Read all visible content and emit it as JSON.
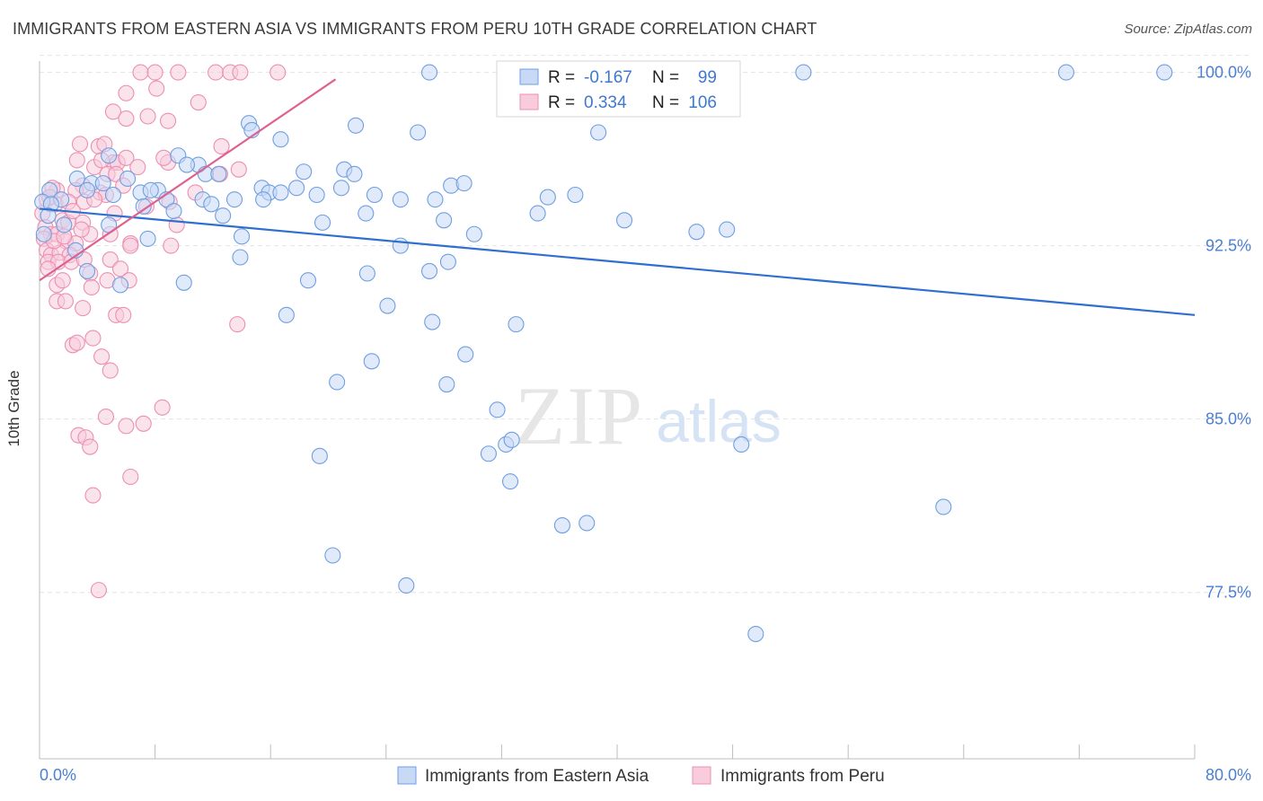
{
  "header": {
    "title": "IMMIGRANTS FROM EASTERN ASIA VS IMMIGRANTS FROM PERU 10TH GRADE CORRELATION CHART",
    "source": "Source: ZipAtlas.com"
  },
  "watermark": {
    "zip": "ZIP",
    "atlas": "atlas"
  },
  "stats": [
    {
      "r_label": "R =",
      "r_value": "-0.167",
      "n_label": "N =",
      "n_value": "99"
    },
    {
      "r_label": "R =",
      "r_value": "0.334",
      "n_label": "N =",
      "n_value": "106"
    }
  ],
  "colors": {
    "blue": "#6f9fe0",
    "blue_fill": "#c7d9f5",
    "blue_line": "#2f6fd0",
    "pink": "#ec8fb0",
    "pink_fill": "#f8ccdc",
    "pink_line": "#e06090",
    "axis_text": "#4a7fd4"
  },
  "chart_data": {
    "type": "scatter",
    "title": "IMMIGRANTS FROM EASTERN ASIA VS IMMIGRANTS FROM PERU 10TH GRADE CORRELATION CHART",
    "ylabel": "10th Grade",
    "xlim": [
      0,
      80
    ],
    "ylim": [
      70.3,
      100.8
    ],
    "x_tick_labels": [
      "0.0%",
      "80.0%"
    ],
    "y_ticks": [
      77.5,
      85.0,
      92.5,
      100.0
    ],
    "y_tick_labels": [
      "77.5%",
      "85.0%",
      "92.5%",
      "100.0%"
    ],
    "legend": [
      "Immigrants from Eastern Asia",
      "Immigrants from Peru"
    ],
    "series": [
      {
        "name": "Immigrants from Eastern Asia",
        "trend": {
          "x": [
            0,
            80
          ],
          "y": [
            94.1,
            89.5
          ]
        },
        "points": [
          [
            27.0,
            100.0
          ],
          [
            37.7,
            100.0
          ],
          [
            52.9,
            100.0
          ],
          [
            71.1,
            100.0
          ],
          [
            77.9,
            100.0
          ],
          [
            14.5,
            97.8
          ],
          [
            14.7,
            97.5
          ],
          [
            21.9,
            97.7
          ],
          [
            26.2,
            97.4
          ],
          [
            38.7,
            97.4
          ],
          [
            16.7,
            97.1
          ],
          [
            4.8,
            96.4
          ],
          [
            9.6,
            96.4
          ],
          [
            11.0,
            96.0
          ],
          [
            10.2,
            96.0
          ],
          [
            11.5,
            95.6
          ],
          [
            12.4,
            95.6
          ],
          [
            18.3,
            95.7
          ],
          [
            21.1,
            95.8
          ],
          [
            21.8,
            95.6
          ],
          [
            2.6,
            95.4
          ],
          [
            3.6,
            95.2
          ],
          [
            4.4,
            95.2
          ],
          [
            6.1,
            95.4
          ],
          [
            0.7,
            94.9
          ],
          [
            1.5,
            94.5
          ],
          [
            3.3,
            94.9
          ],
          [
            8.2,
            94.9
          ],
          [
            7.0,
            94.8
          ],
          [
            15.4,
            95.0
          ],
          [
            15.9,
            94.8
          ],
          [
            16.7,
            94.8
          ],
          [
            17.8,
            95.0
          ],
          [
            19.2,
            94.7
          ],
          [
            20.9,
            95.0
          ],
          [
            23.2,
            94.7
          ],
          [
            28.5,
            95.1
          ],
          [
            29.4,
            95.2
          ],
          [
            37.1,
            94.7
          ],
          [
            0.2,
            94.4
          ],
          [
            0.8,
            94.3
          ],
          [
            5.1,
            94.7
          ],
          [
            7.7,
            94.9
          ],
          [
            8.8,
            94.5
          ],
          [
            11.3,
            94.5
          ],
          [
            11.9,
            94.3
          ],
          [
            13.5,
            94.5
          ],
          [
            15.5,
            94.5
          ],
          [
            25.0,
            94.5
          ],
          [
            27.4,
            94.5
          ],
          [
            0.6,
            93.8
          ],
          [
            1.7,
            93.4
          ],
          [
            7.2,
            94.2
          ],
          [
            9.3,
            94.0
          ],
          [
            12.7,
            93.8
          ],
          [
            19.6,
            93.5
          ],
          [
            22.6,
            93.9
          ],
          [
            28.0,
            93.6
          ],
          [
            34.5,
            93.9
          ],
          [
            45.5,
            93.1
          ],
          [
            47.6,
            93.2
          ],
          [
            0.3,
            93.0
          ],
          [
            4.8,
            93.4
          ],
          [
            7.5,
            92.8
          ],
          [
            14.0,
            92.9
          ],
          [
            25.0,
            92.5
          ],
          [
            28.3,
            91.8
          ],
          [
            13.9,
            92.0
          ],
          [
            3.3,
            91.4
          ],
          [
            5.6,
            90.8
          ],
          [
            10.0,
            90.9
          ],
          [
            18.6,
            91.0
          ],
          [
            22.7,
            91.3
          ],
          [
            27.0,
            91.4
          ],
          [
            24.1,
            89.9
          ],
          [
            17.1,
            89.5
          ],
          [
            33.0,
            89.1
          ],
          [
            29.5,
            87.8
          ],
          [
            23.0,
            87.5
          ],
          [
            20.6,
            86.6
          ],
          [
            28.2,
            86.5
          ],
          [
            31.7,
            85.4
          ],
          [
            31.1,
            83.5
          ],
          [
            32.3,
            83.9
          ],
          [
            32.7,
            84.1
          ],
          [
            48.6,
            83.9
          ],
          [
            19.4,
            83.4
          ],
          [
            32.6,
            82.3
          ],
          [
            62.6,
            81.2
          ],
          [
            36.2,
            80.4
          ],
          [
            37.9,
            80.5
          ],
          [
            20.3,
            79.1
          ],
          [
            25.4,
            77.8
          ],
          [
            49.6,
            75.7
          ],
          [
            27.2,
            89.2
          ],
          [
            2.5,
            92.3
          ],
          [
            35.2,
            94.6
          ],
          [
            30.1,
            93.0
          ],
          [
            40.5,
            93.6
          ]
        ]
      },
      {
        "name": "Immigrants from Peru",
        "trend": {
          "x": [
            0,
            20.5
          ],
          "y": [
            91.0,
            99.7
          ]
        },
        "points": [
          [
            7.0,
            100.0
          ],
          [
            8.0,
            100.0
          ],
          [
            9.6,
            100.0
          ],
          [
            12.2,
            100.0
          ],
          [
            13.2,
            100.0
          ],
          [
            13.9,
            100.0
          ],
          [
            16.5,
            100.0
          ],
          [
            8.1,
            99.3
          ],
          [
            6.0,
            99.1
          ],
          [
            11.0,
            98.7
          ],
          [
            5.1,
            98.3
          ],
          [
            6.0,
            98.0
          ],
          [
            7.5,
            98.1
          ],
          [
            8.9,
            97.9
          ],
          [
            2.8,
            96.9
          ],
          [
            4.1,
            96.8
          ],
          [
            4.5,
            96.9
          ],
          [
            12.6,
            96.8
          ],
          [
            2.6,
            96.2
          ],
          [
            5.1,
            96.1
          ],
          [
            5.4,
            96.1
          ],
          [
            8.9,
            96.1
          ],
          [
            6.0,
            96.3
          ],
          [
            3.8,
            95.9
          ],
          [
            4.7,
            95.6
          ],
          [
            5.3,
            95.6
          ],
          [
            3.0,
            95.1
          ],
          [
            1.2,
            94.9
          ],
          [
            2.5,
            94.9
          ],
          [
            4.2,
            94.8
          ],
          [
            4.6,
            94.7
          ],
          [
            0.5,
            94.5
          ],
          [
            1.1,
            94.3
          ],
          [
            2.0,
            94.4
          ],
          [
            3.1,
            94.4
          ],
          [
            9.0,
            94.4
          ],
          [
            0.2,
            93.9
          ],
          [
            1.6,
            93.6
          ],
          [
            2.0,
            93.5
          ],
          [
            3.0,
            93.5
          ],
          [
            0.4,
            93.3
          ],
          [
            0.8,
            93.0
          ],
          [
            1.2,
            93.0
          ],
          [
            4.9,
            93.0
          ],
          [
            0.3,
            92.8
          ],
          [
            1.8,
            92.7
          ],
          [
            2.5,
            92.6
          ],
          [
            6.3,
            92.6
          ],
          [
            0.5,
            92.3
          ],
          [
            0.8,
            92.1
          ],
          [
            1.4,
            92.2
          ],
          [
            2.1,
            92.1
          ],
          [
            0.6,
            91.8
          ],
          [
            1.3,
            91.8
          ],
          [
            2.2,
            91.8
          ],
          [
            3.1,
            91.9
          ],
          [
            4.9,
            91.9
          ],
          [
            5.6,
            91.5
          ],
          [
            3.5,
            91.3
          ],
          [
            6.3,
            92.5
          ],
          [
            4.7,
            91.0
          ],
          [
            6.2,
            91.0
          ],
          [
            1.2,
            90.8
          ],
          [
            3.6,
            90.7
          ],
          [
            1.2,
            90.1
          ],
          [
            1.8,
            90.1
          ],
          [
            3.0,
            89.8
          ],
          [
            5.3,
            89.5
          ],
          [
            5.8,
            89.5
          ],
          [
            13.7,
            89.1
          ],
          [
            3.7,
            88.5
          ],
          [
            2.3,
            88.2
          ],
          [
            2.6,
            88.3
          ],
          [
            4.3,
            87.7
          ],
          [
            4.9,
            87.1
          ],
          [
            8.5,
            85.5
          ],
          [
            4.6,
            85.1
          ],
          [
            7.2,
            84.8
          ],
          [
            6.0,
            84.7
          ],
          [
            2.7,
            84.3
          ],
          [
            3.2,
            84.2
          ],
          [
            3.5,
            83.8
          ],
          [
            6.3,
            82.5
          ],
          [
            3.7,
            81.7
          ],
          [
            4.1,
            77.6
          ],
          [
            9.5,
            93.4
          ],
          [
            9.1,
            92.5
          ],
          [
            1.6,
            91.0
          ],
          [
            2.3,
            94.0
          ],
          [
            3.5,
            93.0
          ],
          [
            0.9,
            95.0
          ],
          [
            5.8,
            95.1
          ],
          [
            10.8,
            94.8
          ],
          [
            12.5,
            95.6
          ],
          [
            13.8,
            95.8
          ],
          [
            6.8,
            95.9
          ],
          [
            4.3,
            96.2
          ],
          [
            2.9,
            93.2
          ],
          [
            0.7,
            94.6
          ],
          [
            7.4,
            94.2
          ],
          [
            3.8,
            94.5
          ],
          [
            1.0,
            92.7
          ],
          [
            0.6,
            91.5
          ],
          [
            1.7,
            92.9
          ],
          [
            5.2,
            93.9
          ],
          [
            8.6,
            96.3
          ]
        ]
      }
    ]
  }
}
